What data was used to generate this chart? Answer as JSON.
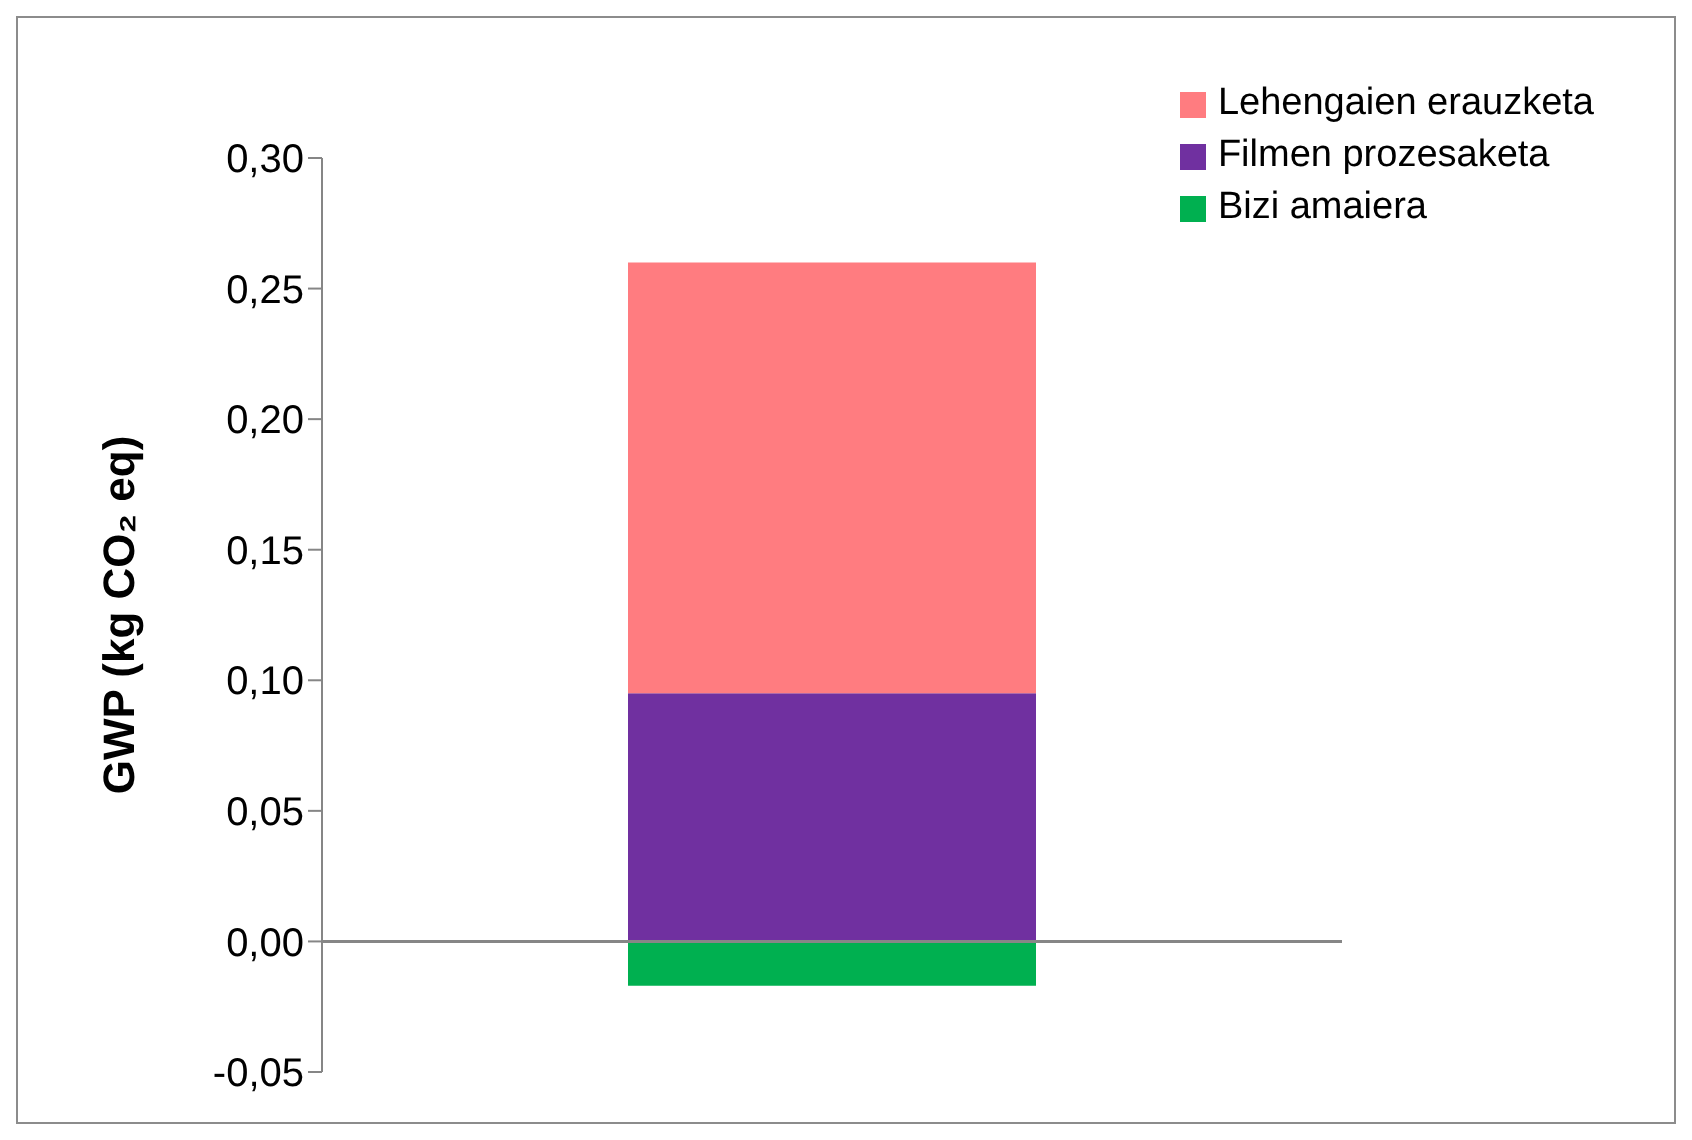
{
  "chart_data": {
    "type": "bar",
    "stacked": true,
    "ylabel": "GWP (kg CO₂ eq)",
    "categories": [
      null
    ],
    "series": [
      {
        "name": "Bizi amaiera",
        "color": "#00b050",
        "values": [
          -0.017
        ]
      },
      {
        "name": "Filmen prozesaketa",
        "color": "#7030a0",
        "values": [
          0.095
        ]
      },
      {
        "name": "Lehengaien erauzketa",
        "color": "#ff7c80",
        "values": [
          0.165
        ]
      }
    ],
    "ylim": [
      -0.05,
      0.3
    ],
    "yticks": [
      {
        "value": -0.05,
        "label": "-0,05"
      },
      {
        "value": 0,
        "label": "0,00"
      },
      {
        "value": 0.05,
        "label": "0,05"
      },
      {
        "value": 0.1,
        "label": "0,10"
      },
      {
        "value": 0.15,
        "label": "0,15"
      },
      {
        "value": 0.2,
        "label": "0,20"
      },
      {
        "value": 0.25,
        "label": "0,25"
      },
      {
        "value": 0.3,
        "label": "0,30"
      }
    ],
    "legend": "top right"
  }
}
